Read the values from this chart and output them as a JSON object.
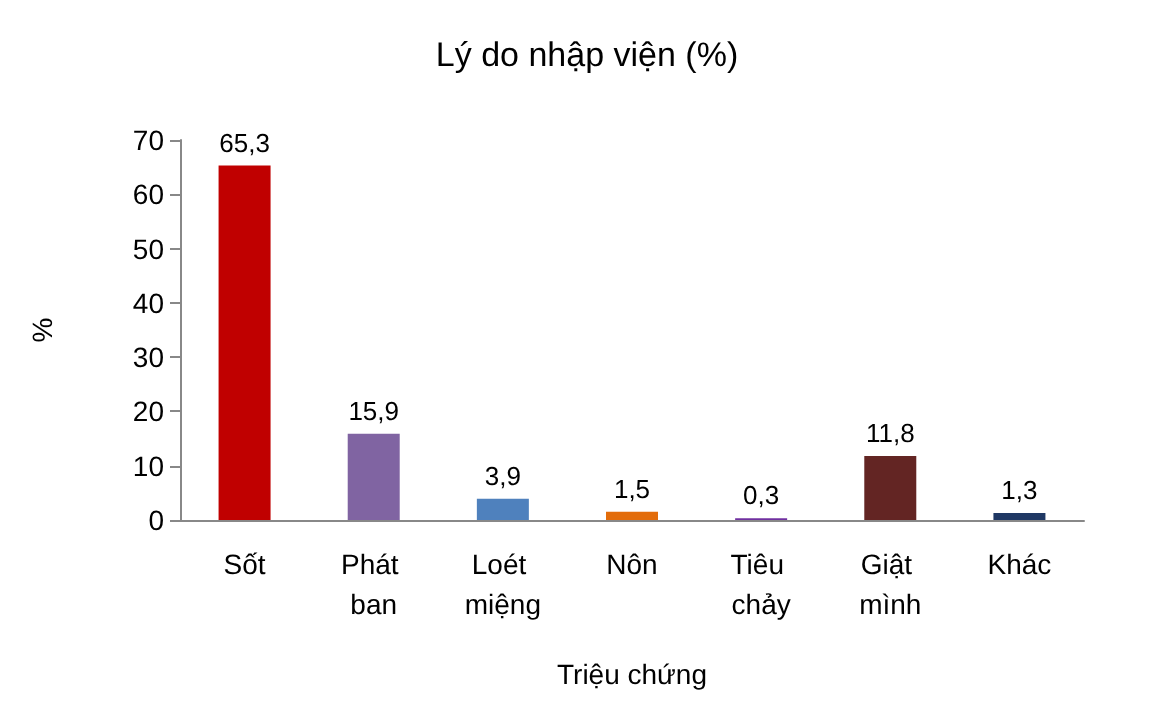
{
  "chart_data": {
    "type": "bar",
    "title": "Lý do nhập viện (%)",
    "xlabel": "Triệu chứng",
    "ylabel": "%",
    "categories": [
      "Sốt",
      "Phát ban",
      "Loét miệng",
      "Nôn",
      "Tiêu chảy",
      "Giật mình",
      "Khác"
    ],
    "values": [
      65.3,
      15.9,
      3.9,
      1.5,
      0.3,
      11.8,
      1.3
    ],
    "colors": [
      "#c00000",
      "#8064a2",
      "#4f81bd",
      "#e36c0a",
      "#7030a0",
      "#632523",
      "#1f3864"
    ],
    "value_labels": [
      "65,3",
      "15,9",
      "3,9",
      "1,5",
      "0,3",
      "11,8",
      "1,3"
    ],
    "ylim": [
      0,
      70
    ],
    "yticks": [
      0,
      10,
      20,
      30,
      40,
      50,
      60,
      70
    ],
    "grid": false
  }
}
